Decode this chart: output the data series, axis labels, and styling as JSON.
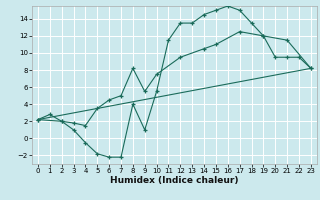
{
  "title": "",
  "xlabel": "Humidex (Indice chaleur)",
  "ylabel": "",
  "bg_color": "#cce9ed",
  "grid_color": "#ffffff",
  "line_color": "#1a6b5a",
  "xlim": [
    -0.5,
    23.5
  ],
  "ylim": [
    -3,
    15.5
  ],
  "xticks": [
    0,
    1,
    2,
    3,
    4,
    5,
    6,
    7,
    8,
    9,
    10,
    11,
    12,
    13,
    14,
    15,
    16,
    17,
    18,
    19,
    20,
    21,
    22,
    23
  ],
  "yticks": [
    -2,
    0,
    2,
    4,
    6,
    8,
    10,
    12,
    14
  ],
  "line1_x": [
    0,
    1,
    2,
    3,
    4,
    5,
    6,
    7,
    8,
    9,
    10,
    11,
    12,
    13,
    14,
    15,
    16,
    17,
    18,
    19,
    20,
    21,
    22,
    23
  ],
  "line1_y": [
    2.2,
    2.8,
    2.0,
    1.0,
    -0.5,
    -1.8,
    -2.2,
    -2.2,
    4.0,
    1.0,
    5.5,
    11.5,
    13.5,
    13.5,
    14.5,
    15.0,
    15.5,
    15.0,
    13.5,
    12.0,
    9.5,
    9.5,
    9.5,
    8.2
  ],
  "line2_x": [
    0,
    2,
    3,
    4,
    5,
    6,
    7,
    8,
    9,
    10,
    12,
    14,
    15,
    17,
    19,
    21,
    23
  ],
  "line2_y": [
    2.2,
    2.0,
    1.8,
    1.5,
    3.5,
    4.5,
    5.0,
    8.2,
    5.5,
    7.5,
    9.5,
    10.5,
    11.0,
    12.5,
    12.0,
    11.5,
    8.2
  ],
  "line3_x": [
    0,
    23
  ],
  "line3_y": [
    2.2,
    8.2
  ]
}
